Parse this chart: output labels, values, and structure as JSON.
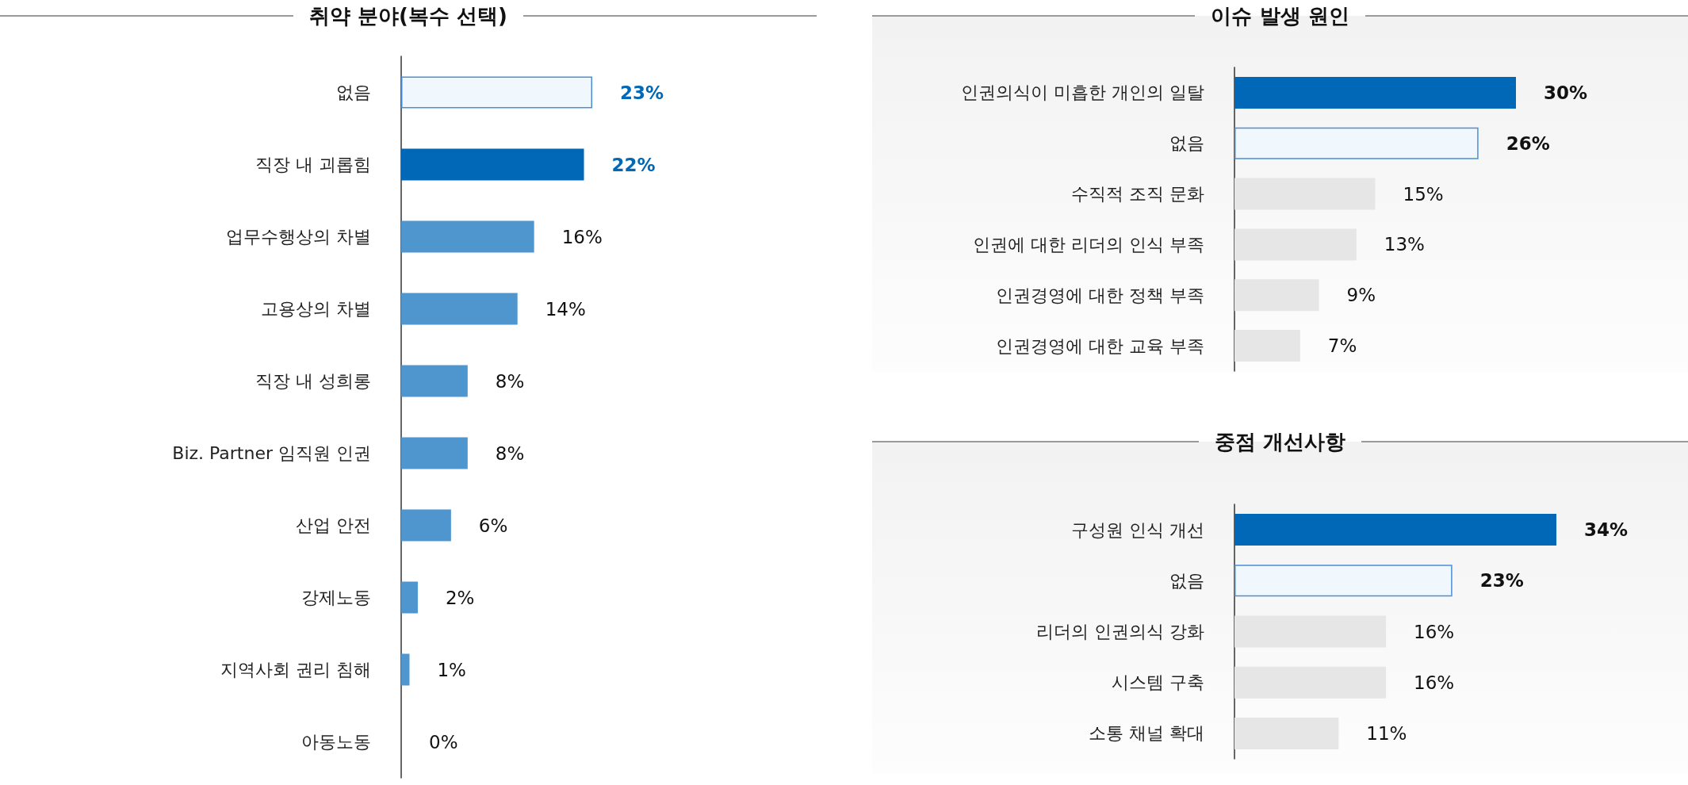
{
  "chart_data": [
    {
      "type": "bar",
      "orientation": "horizontal",
      "title": "취약 분야(복수 선택)",
      "categories": [
        "없음",
        "직장 내 괴롭힘",
        "업무수행상의 차별",
        "고용상의 차별",
        "직장 내 성희롱",
        "Biz. Partner 임직원 인권",
        "산업 안전",
        "강제노동",
        "지역사회 권리 침해",
        "아동노동"
      ],
      "values": [
        23,
        22,
        16,
        14,
        8,
        8,
        6,
        2,
        1,
        0
      ],
      "value_labels": [
        "23%",
        "22%",
        "16%",
        "14%",
        "8%",
        "8%",
        "6%",
        "2%",
        "1%",
        "0%"
      ],
      "colors": [
        "#f0f7fd",
        "#0068b7",
        "#4f96cf",
        "#4f96cf",
        "#4f96cf",
        "#4f96cf",
        "#4f96cf",
        "#4f96cf",
        "#4f96cf",
        "#4f96cf"
      ],
      "tick_labels": "y"
    },
    {
      "type": "bar",
      "orientation": "horizontal",
      "title": "이슈 발생 원인",
      "categories": [
        "인권의식이 미흡한 개인의 일탈",
        "없음",
        "수직적 조직 문화",
        "인권에 대한 리더의 인식 부족",
        "인권경영에 대한 정책 부족",
        "인권경영에 대한 교육 부족"
      ],
      "values": [
        30,
        26,
        15,
        13,
        9,
        7
      ],
      "value_labels": [
        "30%",
        "26%",
        "15%",
        "13%",
        "9%",
        "7%"
      ],
      "colors": [
        "#0068b7",
        "#f0f7fd",
        "#e6e6e6",
        "#e6e6e6",
        "#e6e6e6",
        "#e6e6e6"
      ],
      "tick_labels": "y"
    },
    {
      "type": "bar",
      "orientation": "horizontal",
      "title": "중점 개선사항",
      "categories": [
        "구성원 인식 개선",
        "없음",
        "리더의 인권의식 강화",
        "시스템 구축",
        "소통 채널 확대"
      ],
      "values": [
        34,
        23,
        16,
        16,
        11
      ],
      "value_labels": [
        "34%",
        "23%",
        "16%",
        "16%",
        "11%"
      ],
      "colors": [
        "#0068b7",
        "#f0f7fd",
        "#e6e6e6",
        "#e6e6e6",
        "#e6e6e6"
      ],
      "tick_labels": "y"
    }
  ]
}
